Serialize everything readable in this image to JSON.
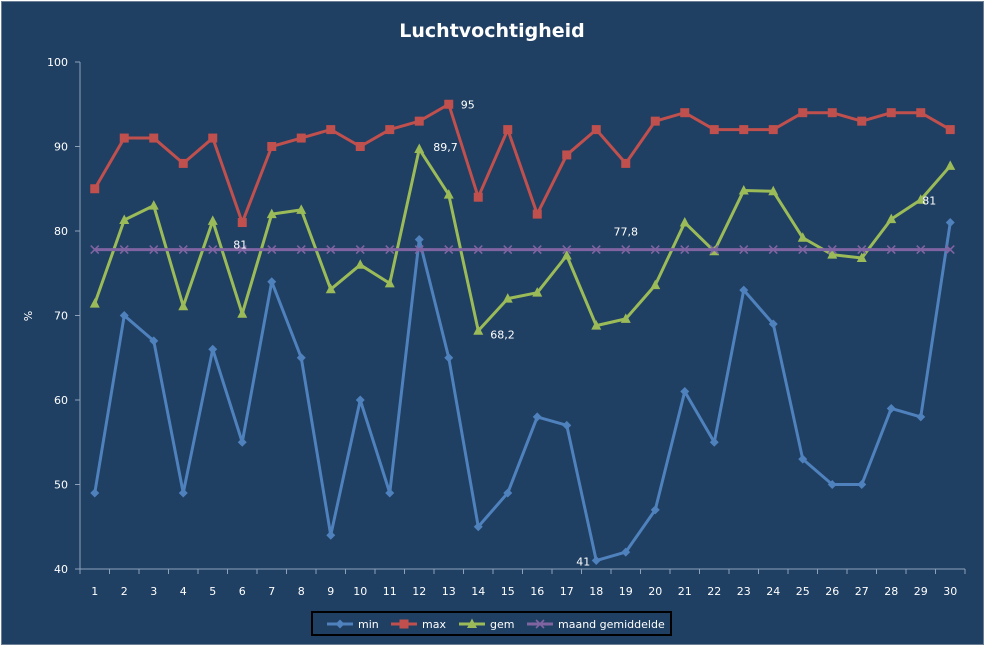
{
  "chart_data": {
    "type": "line",
    "title": "Luchtvochtigheid",
    "xlabel": "",
    "ylabel": "%",
    "ylim": [
      40,
      100
    ],
    "yticks": [
      40,
      50,
      60,
      70,
      80,
      90,
      100
    ],
    "grid": false,
    "legend_position": "bottom",
    "x": [
      1,
      2,
      3,
      4,
      5,
      6,
      7,
      8,
      9,
      10,
      11,
      12,
      13,
      14,
      15,
      16,
      17,
      18,
      19,
      20,
      21,
      22,
      23,
      24,
      25,
      26,
      27,
      28,
      29,
      30
    ],
    "series": [
      {
        "name": "min",
        "color": "#4f81bd",
        "marker": "diamond",
        "values": [
          49,
          70,
          67,
          49,
          66,
          55,
          74,
          65,
          44,
          60,
          49,
          79,
          65,
          45,
          49,
          58,
          57,
          41,
          42,
          47,
          61,
          55,
          73,
          69,
          53,
          50,
          50,
          59,
          58,
          81
        ]
      },
      {
        "name": "max",
        "color": "#c0504d",
        "marker": "square",
        "values": [
          85,
          91,
          91,
          88,
          91,
          81,
          90,
          91,
          92,
          90,
          92,
          93,
          95,
          84,
          92,
          82,
          89,
          92,
          88,
          93,
          94,
          92,
          92,
          92,
          94,
          94,
          93,
          94,
          94,
          92
        ]
      },
      {
        "name": "gem",
        "color": "#9bbb59",
        "marker": "triangle",
        "values": [
          71.4,
          81.3,
          83,
          71.1,
          81.2,
          70.2,
          82,
          82.5,
          73.1,
          76,
          73.8,
          89.7,
          84.3,
          68.2,
          72,
          72.7,
          77.1,
          68.8,
          69.6,
          73.6,
          81,
          77.6,
          84.8,
          84.7,
          79.2,
          77.2,
          76.8,
          81.4,
          83.7,
          87.7
        ]
      },
      {
        "name": "maand gemiddelde",
        "color": "#8064a2",
        "marker": "x",
        "values": [
          77.8,
          77.8,
          77.8,
          77.8,
          77.8,
          77.8,
          77.8,
          77.8,
          77.8,
          77.8,
          77.8,
          77.8,
          77.8,
          77.8,
          77.8,
          77.8,
          77.8,
          77.8,
          77.8,
          77.8,
          77.8,
          77.8,
          77.8,
          77.8,
          77.8,
          77.8,
          77.8,
          77.8,
          77.8,
          77.8
        ]
      }
    ],
    "annotations": [
      {
        "text": "95",
        "x": 13,
        "series": "max"
      },
      {
        "text": "89,7",
        "x": 12,
        "series": "gem"
      },
      {
        "text": "68,2",
        "x": 14,
        "series": "gem"
      },
      {
        "text": "81",
        "x": 6,
        "series": "max"
      },
      {
        "text": "77,8",
        "x": 19,
        "series": "maand gemiddelde"
      },
      {
        "text": "81",
        "x": 30,
        "series": "min"
      },
      {
        "text": "41",
        "x": 18,
        "series": "min"
      }
    ]
  }
}
